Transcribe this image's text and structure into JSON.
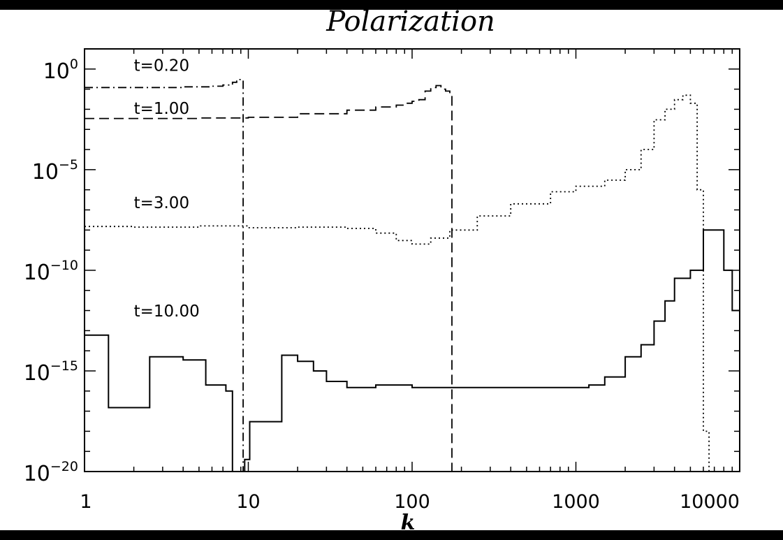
{
  "chart_data": {
    "type": "line",
    "title": "Polarization",
    "xlabel": "k",
    "ylabel": "",
    "x_scale": "log",
    "y_scale": "log",
    "xlim": [
      1,
      10000
    ],
    "ylim": [
      1e-20,
      10
    ],
    "x_ticks": [
      {
        "value": 1,
        "label": "1"
      },
      {
        "value": 10,
        "label": "10"
      },
      {
        "value": 100,
        "label": "100"
      },
      {
        "value": 1000,
        "label": "1000"
      },
      {
        "value": 10000,
        "label": "10000"
      }
    ],
    "y_ticks": [
      {
        "value": 1,
        "base": "10",
        "exp": "0"
      },
      {
        "value": 1e-05,
        "base": "10",
        "exp": "−5"
      },
      {
        "value": 1e-10,
        "base": "10",
        "exp": "−10"
      },
      {
        "value": 1e-15,
        "base": "10",
        "exp": "−15"
      },
      {
        "value": 1e-20,
        "base": "10",
        "exp": "−20"
      }
    ],
    "grid": false,
    "legend": "none",
    "series": [
      {
        "label": "t=0.20",
        "style": "dash-dot",
        "label_at": [
          2,
          0.8
        ],
        "x": [
          1,
          2,
          4,
          6,
          7,
          8,
          8.5,
          9,
          9.2,
          9.3,
          9.3
        ],
        "y": [
          0.12,
          0.12,
          0.13,
          0.14,
          0.16,
          0.22,
          0.3,
          0.3,
          0.3,
          0.3,
          1e-20
        ]
      },
      {
        "label": "t=1.00",
        "style": "dashed",
        "label_at": [
          2,
          0.006
        ],
        "x": [
          1,
          5,
          10,
          20,
          40,
          60,
          80,
          90,
          100,
          110,
          120,
          130,
          140,
          150,
          160,
          170,
          175,
          175
        ],
        "y": [
          0.0035,
          0.0037,
          0.004,
          0.006,
          0.009,
          0.013,
          0.016,
          0.02,
          0.025,
          0.03,
          0.08,
          0.12,
          0.15,
          0.1,
          0.08,
          0.05,
          0.04,
          1e-20
        ]
      },
      {
        "label": "t=3.00",
        "style": "dotted",
        "label_at": [
          2,
          1.2e-07
        ],
        "x": [
          1,
          2,
          5,
          10,
          20,
          40,
          60,
          80,
          100,
          130,
          170,
          250,
          400,
          700,
          1000,
          1500,
          2000,
          2500,
          3000,
          3500,
          4000,
          4500,
          5000,
          5500,
          6000,
          6500
        ],
        "y": [
          1.5e-08,
          1.4e-08,
          1.6e-08,
          1.3e-08,
          1.4e-08,
          1.2e-08,
          7e-09,
          3e-09,
          2e-09,
          4e-09,
          1e-08,
          5e-08,
          2e-07,
          8e-07,
          1.5e-06,
          3e-06,
          1e-05,
          0.0001,
          0.003,
          0.01,
          0.03,
          0.05,
          0.02,
          1e-06,
          1e-18,
          1e-20
        ]
      },
      {
        "label": "t=10.00",
        "style": "solid",
        "label_at": [
          2,
          5e-13
        ],
        "x": [
          1,
          1.4,
          2.5,
          4,
          5.5,
          7.3,
          8,
          8.7,
          9.5,
          10.2,
          11.5,
          16,
          20,
          25,
          30,
          40,
          60,
          100,
          200,
          400,
          800,
          1200,
          1500,
          2000,
          2500,
          3000,
          3500,
          4000,
          5000,
          6000,
          7000,
          8000,
          9000,
          10000
        ],
        "y": [
          6e-14,
          1.5e-17,
          5e-15,
          3.5e-15,
          2e-16,
          1e-16,
          1e-20,
          1e-20,
          4e-20,
          3e-18,
          3e-18,
          6e-15,
          3e-15,
          1e-15,
          3e-16,
          1.5e-16,
          2e-16,
          1.5e-16,
          1.5e-16,
          1.5e-16,
          1.5e-16,
          2e-16,
          5e-16,
          5e-15,
          2e-14,
          3e-13,
          3e-12,
          4e-11,
          1e-10,
          1e-08,
          1e-08,
          1e-10,
          1e-12,
          1e-15
        ]
      }
    ]
  }
}
